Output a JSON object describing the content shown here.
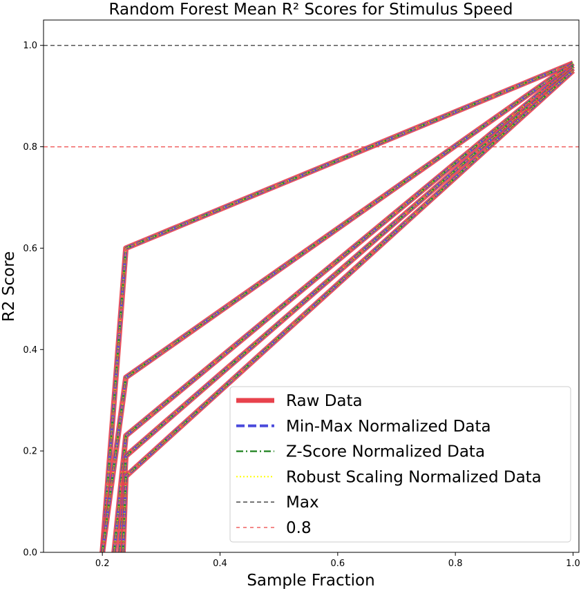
{
  "chart_data": {
    "type": "line",
    "title": "Random Forest Mean R² Scores for Stimulus Speed",
    "xlabel": "Sample Fraction",
    "ylabel": "R2 Score",
    "xlim": [
      0.1,
      1.01
    ],
    "ylim": [
      0.0,
      1.05
    ],
    "xticks": [
      0.2,
      0.4,
      0.6,
      0.8,
      1.0
    ],
    "yticks": [
      0.0,
      0.2,
      0.4,
      0.6,
      0.8,
      1.0
    ],
    "xtick_labels": [
      "0.2",
      "0.4",
      "0.6",
      "0.8",
      "1.0"
    ],
    "ytick_labels": [
      "0.0",
      "0.2",
      "0.4",
      "0.6",
      "0.8",
      "1.0"
    ],
    "grid": false,
    "legend_position": "lower-right",
    "x": [
      0.2,
      0.24,
      1.0
    ],
    "paths": [
      {
        "points": [
          [
            0.2,
            0.0
          ],
          [
            0.24,
            0.6
          ],
          [
            1.0,
            0.965
          ]
        ]
      },
      {
        "points": [
          [
            0.2,
            0.0
          ],
          [
            0.24,
            0.345
          ],
          [
            1.0,
            0.965
          ]
        ]
      },
      {
        "points": [
          [
            0.22,
            0.0
          ],
          [
            0.24,
            0.23
          ],
          [
            1.0,
            0.96
          ]
        ]
      },
      {
        "points": [
          [
            0.23,
            0.0
          ],
          [
            0.24,
            0.19
          ],
          [
            1.0,
            0.955
          ]
        ]
      },
      {
        "points": [
          [
            0.235,
            0.0
          ],
          [
            0.24,
            0.15
          ],
          [
            1.0,
            0.95
          ]
        ]
      }
    ],
    "series": [
      {
        "name": "Raw Data",
        "color": "#e8424c",
        "style": "solid"
      },
      {
        "name": "Min-Max Normalized Data",
        "color": "#4b4bdc",
        "style": "dashed"
      },
      {
        "name": "Z-Score Normalized Data",
        "color": "#2e8b2e",
        "style": "dashdot"
      },
      {
        "name": "Robust Scaling Normalized Data",
        "color": "#ffff00",
        "style": "dotted"
      },
      {
        "name": "Max",
        "color": "#555555",
        "style": "dashed"
      },
      {
        "name": "0.8",
        "color": "#f06060",
        "style": "dashed"
      }
    ],
    "reference_lines": [
      {
        "name": "Max",
        "y": 1.0,
        "color": "#555555"
      },
      {
        "name": "0.8",
        "y": 0.8,
        "color": "#f06060"
      }
    ]
  }
}
